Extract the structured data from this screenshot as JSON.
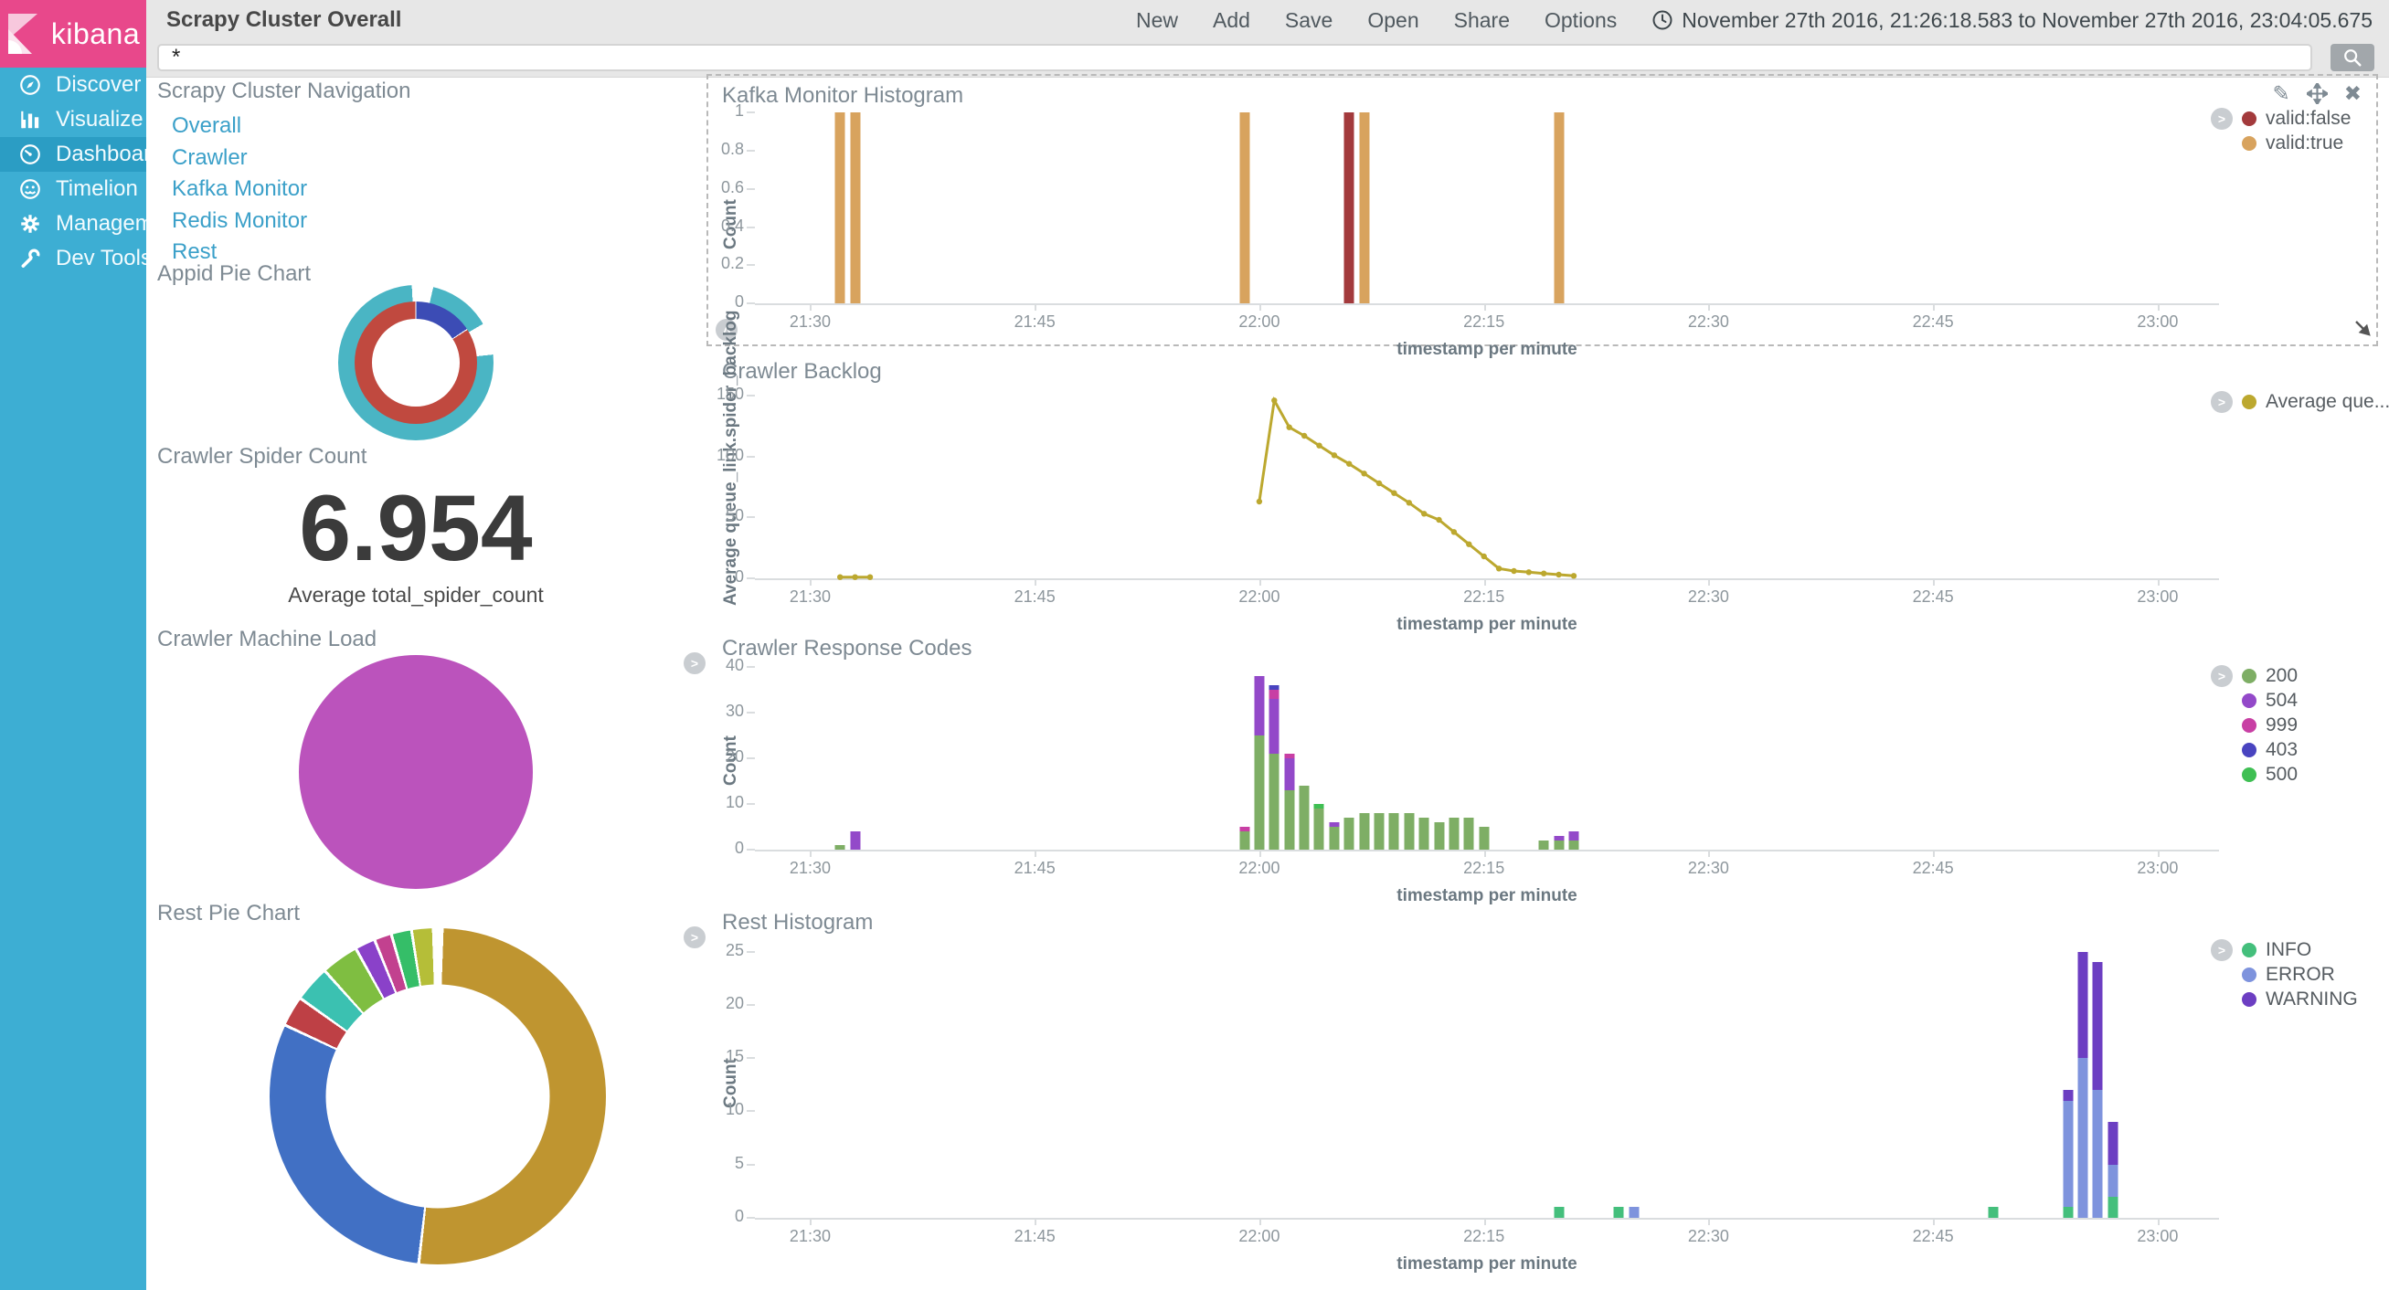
{
  "header": {
    "logo_text": "kibana",
    "title": "Scrapy Cluster Overall",
    "menu": [
      "New",
      "Add",
      "Save",
      "Open",
      "Share",
      "Options"
    ],
    "time_range": "November 27th 2016, 21:26:18.583 to November 27th 2016, 23:04:05.675",
    "search": {
      "value": "*"
    }
  },
  "sidebar": {
    "items": [
      {
        "label": "Discover",
        "icon": "compass-icon",
        "active": false
      },
      {
        "label": "Visualize",
        "icon": "bar-chart-icon",
        "active": false
      },
      {
        "label": "Dashboard",
        "icon": "gauge-icon",
        "active": true
      },
      {
        "label": "Timelion",
        "icon": "timelion-icon",
        "active": false
      },
      {
        "label": "Management",
        "icon": "gear-icon",
        "active": false
      },
      {
        "label": "Dev Tools",
        "icon": "wrench-icon",
        "active": false
      }
    ]
  },
  "panels": {
    "navigation": {
      "title": "Scrapy Cluster Navigation",
      "links": [
        "Overall",
        "Crawler",
        "Kafka Monitor",
        "Redis Monitor",
        "Rest"
      ]
    },
    "appid_pie": {
      "title": "Appid Pie Chart"
    },
    "spider_count": {
      "title": "Crawler Spider Count",
      "value": "6.954",
      "caption": "Average total_spider_count"
    },
    "machine_load": {
      "title": "Crawler Machine Load"
    },
    "rest_pie": {
      "title": "Rest Pie Chart"
    },
    "kafka_histogram": {
      "title": "Kafka Monitor Histogram"
    },
    "crawler_backlog": {
      "title": "Crawler Backlog"
    },
    "response_codes": {
      "title": "Crawler Response Codes"
    },
    "rest_histogram": {
      "title": "Rest Histogram"
    }
  },
  "time_axis": {
    "domain_start": "21:26:18.583",
    "domain_end": "23:04:05.675",
    "ticks": [
      "21:30",
      "21:45",
      "22:00",
      "22:15",
      "22:30",
      "22:45",
      "23:00"
    ],
    "xlabel": "timestamp per minute"
  },
  "chart_data": [
    {
      "id": "kafka_histogram",
      "type": "bar",
      "title": "Kafka Monitor Histogram",
      "ylabel": "Count",
      "xlabel": "timestamp per minute",
      "ylim": [
        0,
        1
      ],
      "yticks": [
        0,
        0.2,
        0.4,
        0.6,
        0.8,
        1
      ],
      "series": [
        {
          "name": "valid:false",
          "color": "#A33A3C",
          "points": [
            {
              "t": "22:06",
              "v": 1
            }
          ]
        },
        {
          "name": "valid:true",
          "color": "#D8A35E",
          "points": [
            {
              "t": "21:32",
              "v": 1
            },
            {
              "t": "21:33",
              "v": 1
            },
            {
              "t": "21:59",
              "v": 1
            },
            {
              "t": "22:07",
              "v": 1
            },
            {
              "t": "22:20",
              "v": 1
            }
          ]
        }
      ],
      "legend": [
        {
          "label": "valid:false",
          "color": "#A33A3C"
        },
        {
          "label": "valid:true",
          "color": "#D8A35E"
        }
      ]
    },
    {
      "id": "crawler_backlog",
      "type": "line",
      "title": "Crawler Backlog",
      "ylabel": "Average queue_link.spider_backlog",
      "xlabel": "timestamp per minute",
      "ylim": [
        0,
        150
      ],
      "yticks": [
        0,
        50,
        100,
        150
      ],
      "color": "#BCA82F",
      "segments": [
        [
          {
            "t": "21:32",
            "v": 1
          },
          {
            "t": "21:33",
            "v": 1
          },
          {
            "t": "21:34",
            "v": 1
          }
        ],
        [
          {
            "t": "22:00",
            "v": 63
          },
          {
            "t": "22:01",
            "v": 146
          },
          {
            "t": "22:02",
            "v": 124
          },
          {
            "t": "22:03",
            "v": 117
          },
          {
            "t": "22:04",
            "v": 109
          },
          {
            "t": "22:05",
            "v": 101
          },
          {
            "t": "22:06",
            "v": 94
          },
          {
            "t": "22:07",
            "v": 86
          },
          {
            "t": "22:08",
            "v": 78
          },
          {
            "t": "22:09",
            "v": 70
          },
          {
            "t": "22:10",
            "v": 62
          },
          {
            "t": "22:11",
            "v": 53
          },
          {
            "t": "22:12",
            "v": 48
          },
          {
            "t": "22:13",
            "v": 38
          },
          {
            "t": "22:14",
            "v": 28
          },
          {
            "t": "22:15",
            "v": 18
          },
          {
            "t": "22:16",
            "v": 8
          },
          {
            "t": "22:17",
            "v": 6
          },
          {
            "t": "22:18",
            "v": 5
          },
          {
            "t": "22:19",
            "v": 4
          },
          {
            "t": "22:20",
            "v": 3
          },
          {
            "t": "22:21",
            "v": 2
          }
        ]
      ],
      "legend": [
        {
          "label": "Average que...",
          "color": "#BCA82F"
        }
      ]
    },
    {
      "id": "response_codes",
      "type": "stacked-bar",
      "title": "Crawler Response Codes",
      "ylabel": "Count",
      "xlabel": "timestamp per minute",
      "ylim": [
        0,
        40
      ],
      "yticks": [
        0,
        10,
        20,
        30,
        40
      ],
      "series": [
        {
          "name": "200",
          "color": "#7EAE65"
        },
        {
          "name": "504",
          "color": "#9349C9"
        },
        {
          "name": "999",
          "color": "#C83FA4"
        },
        {
          "name": "403",
          "color": "#4944C0"
        },
        {
          "name": "500",
          "color": "#3FBF53"
        }
      ],
      "bars": [
        {
          "t": "21:32",
          "values": {
            "200": 1
          }
        },
        {
          "t": "21:33",
          "values": {
            "504": 4
          }
        },
        {
          "t": "21:59",
          "values": {
            "200": 4,
            "999": 1
          }
        },
        {
          "t": "22:00",
          "values": {
            "200": 25,
            "504": 13
          }
        },
        {
          "t": "22:01",
          "values": {
            "200": 21,
            "504": 12,
            "999": 2,
            "403": 1
          }
        },
        {
          "t": "22:02",
          "values": {
            "200": 13,
            "504": 7,
            "999": 1
          }
        },
        {
          "t": "22:03",
          "values": {
            "200": 14
          }
        },
        {
          "t": "22:04",
          "values": {
            "200": 9,
            "500": 1
          }
        },
        {
          "t": "22:05",
          "values": {
            "200": 5,
            "504": 1
          }
        },
        {
          "t": "22:06",
          "values": {
            "200": 7
          }
        },
        {
          "t": "22:07",
          "values": {
            "200": 8
          }
        },
        {
          "t": "22:08",
          "values": {
            "200": 8
          }
        },
        {
          "t": "22:09",
          "values": {
            "200": 8
          }
        },
        {
          "t": "22:10",
          "values": {
            "200": 8
          }
        },
        {
          "t": "22:11",
          "values": {
            "200": 7
          }
        },
        {
          "t": "22:12",
          "values": {
            "200": 6
          }
        },
        {
          "t": "22:13",
          "values": {
            "200": 7
          }
        },
        {
          "t": "22:14",
          "values": {
            "200": 7
          }
        },
        {
          "t": "22:15",
          "values": {
            "200": 5
          }
        },
        {
          "t": "22:19",
          "values": {
            "200": 2
          }
        },
        {
          "t": "22:20",
          "values": {
            "200": 2,
            "504": 1
          }
        },
        {
          "t": "22:21",
          "values": {
            "200": 2,
            "504": 2
          }
        }
      ],
      "legend": [
        {
          "label": "200",
          "color": "#7EAE65"
        },
        {
          "label": "504",
          "color": "#9349C9"
        },
        {
          "label": "999",
          "color": "#C83FA4"
        },
        {
          "label": "403",
          "color": "#4944C0"
        },
        {
          "label": "500",
          "color": "#3FBF53"
        }
      ]
    },
    {
      "id": "rest_histogram",
      "type": "stacked-bar",
      "title": "Rest Histogram",
      "ylabel": "Count",
      "xlabel": "timestamp per minute",
      "ylim": [
        0,
        25
      ],
      "yticks": [
        0,
        5,
        10,
        15,
        20,
        25
      ],
      "series": [
        {
          "name": "INFO",
          "color": "#44BF7C"
        },
        {
          "name": "ERROR",
          "color": "#7E93DD"
        },
        {
          "name": "WARNING",
          "color": "#6C3EC2"
        }
      ],
      "bars": [
        {
          "t": "22:20",
          "values": {
            "INFO": 1
          }
        },
        {
          "t": "22:24",
          "values": {
            "INFO": 1
          }
        },
        {
          "t": "22:25",
          "values": {
            "ERROR": 1
          }
        },
        {
          "t": "22:49",
          "values": {
            "INFO": 1
          }
        },
        {
          "t": "22:54",
          "values": {
            "INFO": 1,
            "ERROR": 10,
            "WARNING": 1
          }
        },
        {
          "t": "22:55",
          "values": {
            "ERROR": 15,
            "WARNING": 10
          }
        },
        {
          "t": "22:56",
          "values": {
            "ERROR": 12,
            "WARNING": 12
          }
        },
        {
          "t": "22:57",
          "values": {
            "INFO": 2,
            "ERROR": 3,
            "WARNING": 4
          }
        }
      ],
      "legend": [
        {
          "label": "INFO",
          "color": "#44BF7C"
        },
        {
          "label": "ERROR",
          "color": "#7E93DD"
        },
        {
          "label": "WARNING",
          "color": "#6C3EC2"
        }
      ]
    },
    {
      "id": "appid_pie",
      "type": "donut",
      "title": "Appid Pie Chart",
      "rings": {
        "inner": [
          {
            "color": "#3C4CB5",
            "start": 0.5,
            "end": 56.5
          },
          {
            "color": "#C0493F",
            "start": 57.5,
            "end": 359.5
          }
        ],
        "outer": [
          {
            "color": "#4AB5C4",
            "start": 13,
            "end": 60
          },
          {
            "color": "#4AB5C4",
            "start": 84,
            "end": 357
          }
        ]
      }
    },
    {
      "id": "machine_load",
      "type": "pie",
      "title": "Crawler Machine Load",
      "segments": [
        {
          "color": "#BB53BC",
          "start": 0,
          "end": 360
        }
      ]
    },
    {
      "id": "rest_pie",
      "type": "donut",
      "title": "Rest Pie Chart",
      "segments": [
        {
          "color": "#BF9530",
          "start": 2,
          "end": 186
        },
        {
          "color": "#4170C4",
          "start": 187,
          "end": 294.5
        },
        {
          "color": "#BE4045",
          "start": 295.5,
          "end": 305
        },
        {
          "color": "#3BC1B1",
          "start": 306,
          "end": 317.5
        },
        {
          "color": "#7FBE41",
          "start": 318.5,
          "end": 330.5
        },
        {
          "color": "#8A41C9",
          "start": 331.5,
          "end": 337.5
        },
        {
          "color": "#C2418F",
          "start": 338.5,
          "end": 343.5
        },
        {
          "color": "#35BE68",
          "start": 344.5,
          "end": 350.5
        },
        {
          "color": "#B5BE38",
          "start": 351.5,
          "end": 358
        }
      ]
    }
  ]
}
